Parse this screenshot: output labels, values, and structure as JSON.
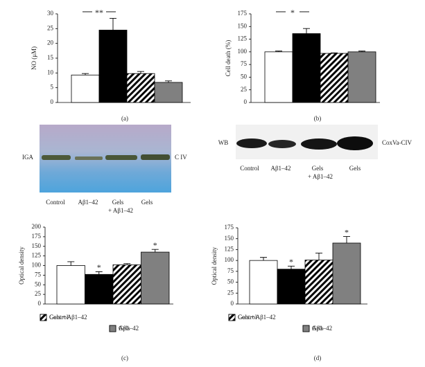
{
  "chart_data": [
    {
      "type": "bar",
      "y_label": "NO (μM)",
      "panel_label": "(a)",
      "values": [
        9.3,
        24.5,
        9.8,
        6.8
      ],
      "errors": [
        0.5,
        4,
        0.7,
        0.5
      ],
      "fills": [
        "#ffffff",
        "#000000",
        "hatch",
        "#808080"
      ],
      "ylim": [
        0,
        30
      ],
      "yticks": [
        0,
        5,
        10,
        15,
        20,
        25,
        30
      ],
      "bracket": {
        "label": "**",
        "from": 0,
        "to": 1
      }
    },
    {
      "type": "bar",
      "y_label": "Cell death (%)",
      "panel_label": "(b)",
      "values": [
        100,
        136,
        97,
        100
      ],
      "errors": [
        1.5,
        10,
        1,
        1.5
      ],
      "fills": [
        "#ffffff",
        "#000000",
        "hatch",
        "#808080"
      ],
      "ylim": [
        0,
        175
      ],
      "yticks": [
        0,
        25,
        50,
        75,
        100,
        125,
        150,
        175
      ],
      "bracket": {
        "label": "*",
        "from": 0,
        "to": 1
      }
    },
    {
      "type": "bar",
      "y_label": "Optical density",
      "panel_label": "(c)",
      "values": [
        100,
        77,
        102,
        135
      ],
      "errors": [
        10,
        7,
        3,
        7
      ],
      "fills": [
        "#ffffff",
        "#000000",
        "hatch",
        "#808080"
      ],
      "ylim": [
        0,
        200
      ],
      "yticks": [
        0,
        25,
        50,
        75,
        100,
        125,
        150,
        175,
        200
      ],
      "bar_annotations": [
        null,
        "*",
        null,
        "*"
      ],
      "legend": [
        "Control",
        "Aβ1–42",
        "Gels + Aβ1–42",
        "Gels"
      ]
    },
    {
      "type": "bar",
      "y_label": "Optical density",
      "panel_label": "(d)",
      "values": [
        100,
        80,
        101,
        140
      ],
      "errors": [
        7,
        7,
        16,
        15
      ],
      "fills": [
        "#ffffff",
        "#000000",
        "hatch",
        "#808080"
      ],
      "ylim": [
        0,
        175
      ],
      "yticks": [
        0,
        25,
        50,
        75,
        100,
        125,
        150,
        175
      ],
      "bar_annotations": [
        null,
        "*",
        null,
        "*"
      ],
      "legend": [
        "Control",
        "Aβ1–42",
        "Gels + Aβ1–42",
        "Gels"
      ]
    }
  ],
  "blots": [
    {
      "left_label": "IGA",
      "right_label": "C IV",
      "lanes": [
        [
          "Control"
        ],
        [
          "Aβ1–42"
        ],
        [
          "Gels",
          "+ Aβ1–42"
        ],
        [
          "Gels"
        ]
      ]
    },
    {
      "left_label": "WB",
      "right_label": "CoxVa-CIV",
      "lanes": [
        [
          "Control"
        ],
        [
          "Aβ1–42"
        ],
        [
          "Gels",
          "+ Aβ1–42"
        ],
        [
          "Gels"
        ]
      ]
    }
  ]
}
